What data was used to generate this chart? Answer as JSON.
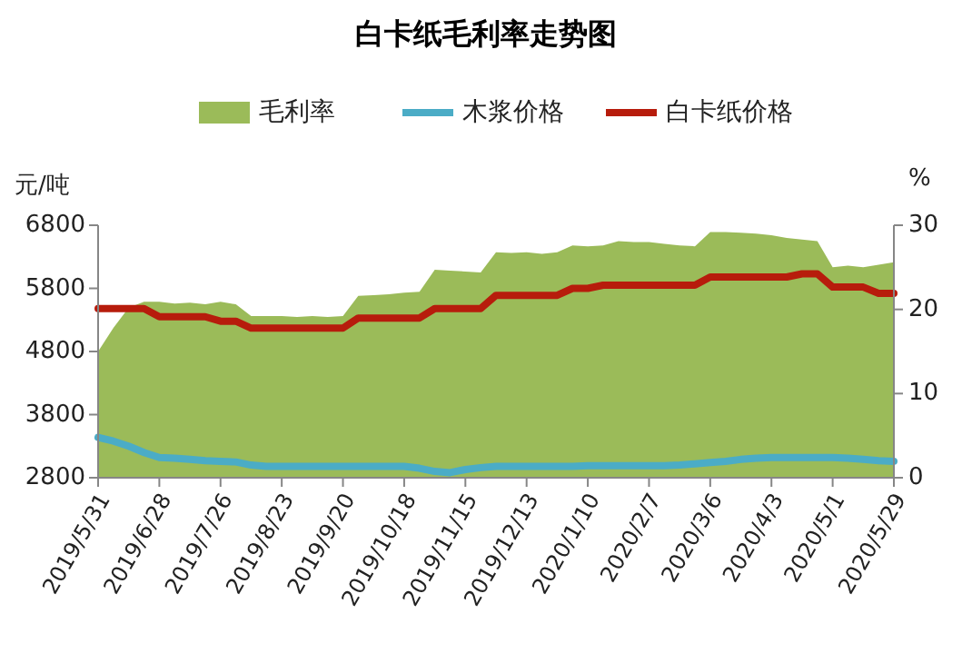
{
  "chart_data": {
    "type": "line",
    "title": "白卡纸毛利率走势图",
    "ylabel": "元/吨",
    "y2label": "%",
    "legend": "top",
    "grid": false,
    "x": [
      "2019-05-31",
      "2019-06-07",
      "2019-06-14",
      "2019-06-21",
      "2019-06-28",
      "2019-07-05",
      "2019-07-12",
      "2019-07-19",
      "2019-07-26",
      "2019-08-02",
      "2019-08-09",
      "2019-08-16",
      "2019-08-23",
      "2019-08-30",
      "2019-09-06",
      "2019-09-13",
      "2019-09-20",
      "2019-09-27",
      "2019-10-04",
      "2019-10-11",
      "2019-10-18",
      "2019-10-25",
      "2019-11-01",
      "2019-11-08",
      "2019-11-15",
      "2019-11-22",
      "2019-11-29",
      "2019-12-06",
      "2019-12-13",
      "2019-12-20",
      "2019-12-27",
      "2020-01-03",
      "2020-01-10",
      "2020-01-17",
      "2020-01-24",
      "2020-01-31",
      "2020-02-07",
      "2020-02-14",
      "2020-02-21",
      "2020-02-28",
      "2020-03-06",
      "2020-03-13",
      "2020-03-20",
      "2020-03-27",
      "2020-04-03",
      "2020-04-10",
      "2020-04-17",
      "2020-04-24",
      "2020-05-01",
      "2020-05-08",
      "2020-05-15",
      "2020-05-22",
      "2020-05-29"
    ],
    "xlim": [
      "2019-05-31",
      "2020-05-29"
    ],
    "xticks": [
      {
        "value": "2019-05-31",
        "label": "2019/5/31"
      },
      {
        "value": "2019-06-28",
        "label": "2019/6/28"
      },
      {
        "value": "2019-07-26",
        "label": "2019/7/26"
      },
      {
        "value": "2019-08-23",
        "label": "2019/8/23"
      },
      {
        "value": "2019-09-20",
        "label": "2019/9/20"
      },
      {
        "value": "2019-10-18",
        "label": "2019/10/18"
      },
      {
        "value": "2019-11-15",
        "label": "2019/11/15"
      },
      {
        "value": "2019-12-13",
        "label": "2019/12/13"
      },
      {
        "value": "2020-01-10",
        "label": "2020/1/10"
      },
      {
        "value": "2020-02-07",
        "label": "2020/2/7"
      },
      {
        "value": "2020-03-06",
        "label": "2020/3/6"
      },
      {
        "value": "2020-04-03",
        "label": "2020/4/3"
      },
      {
        "value": "2020-05-01",
        "label": "2020/5/1"
      },
      {
        "value": "2020-05-29",
        "label": "2020/5/29"
      }
    ],
    "ylim": [
      2800,
      6800
    ],
    "yticks": [
      2800,
      3800,
      4800,
      5800,
      6800
    ],
    "y2lim": [
      0,
      30
    ],
    "y2ticks": [
      0,
      10,
      20,
      30
    ],
    "series": [
      {
        "name": "毛利率",
        "type": "area",
        "axis": "y2",
        "color": "#9bbb59",
        "values": [
          15.0,
          17.8,
          20.2,
          20.9,
          20.9,
          20.7,
          20.8,
          20.6,
          20.9,
          20.6,
          19.2,
          19.2,
          19.2,
          19.1,
          19.2,
          19.1,
          19.2,
          21.6,
          21.7,
          21.8,
          22.0,
          22.1,
          24.7,
          24.6,
          24.5,
          24.4,
          26.8,
          26.7,
          26.8,
          26.6,
          26.8,
          27.6,
          27.5,
          27.6,
          28.1,
          28.0,
          28.0,
          27.8,
          27.6,
          27.5,
          29.2,
          29.2,
          29.1,
          29.0,
          28.8,
          28.5,
          28.3,
          28.1,
          25.0,
          25.2,
          25.0,
          25.3,
          25.6
        ]
      },
      {
        "name": "木浆价格",
        "color": "#4bacc6",
        "values": [
          3440,
          3380,
          3300,
          3200,
          3120,
          3110,
          3090,
          3070,
          3060,
          3050,
          3000,
          2980,
          2980,
          2980,
          2980,
          2980,
          2980,
          2980,
          2980,
          2980,
          2980,
          2950,
          2900,
          2880,
          2930,
          2960,
          2980,
          2980,
          2980,
          2980,
          2980,
          2980,
          2990,
          2990,
          2990,
          2990,
          2990,
          2990,
          3000,
          3020,
          3040,
          3060,
          3090,
          3110,
          3120,
          3120,
          3120,
          3120,
          3120,
          3110,
          3090,
          3070,
          3060
        ]
      },
      {
        "name": "白卡纸价格",
        "color": "#b71c0c",
        "values": [
          5480,
          5480,
          5480,
          5480,
          5350,
          5350,
          5350,
          5350,
          5280,
          5280,
          5170,
          5170,
          5170,
          5170,
          5170,
          5170,
          5170,
          5330,
          5330,
          5330,
          5330,
          5330,
          5480,
          5480,
          5480,
          5480,
          5690,
          5690,
          5690,
          5690,
          5690,
          5800,
          5800,
          5850,
          5850,
          5850,
          5850,
          5850,
          5850,
          5850,
          5980,
          5980,
          5980,
          5980,
          5980,
          5980,
          6030,
          6030,
          5820,
          5820,
          5820,
          5720,
          5720
        ]
      }
    ]
  }
}
